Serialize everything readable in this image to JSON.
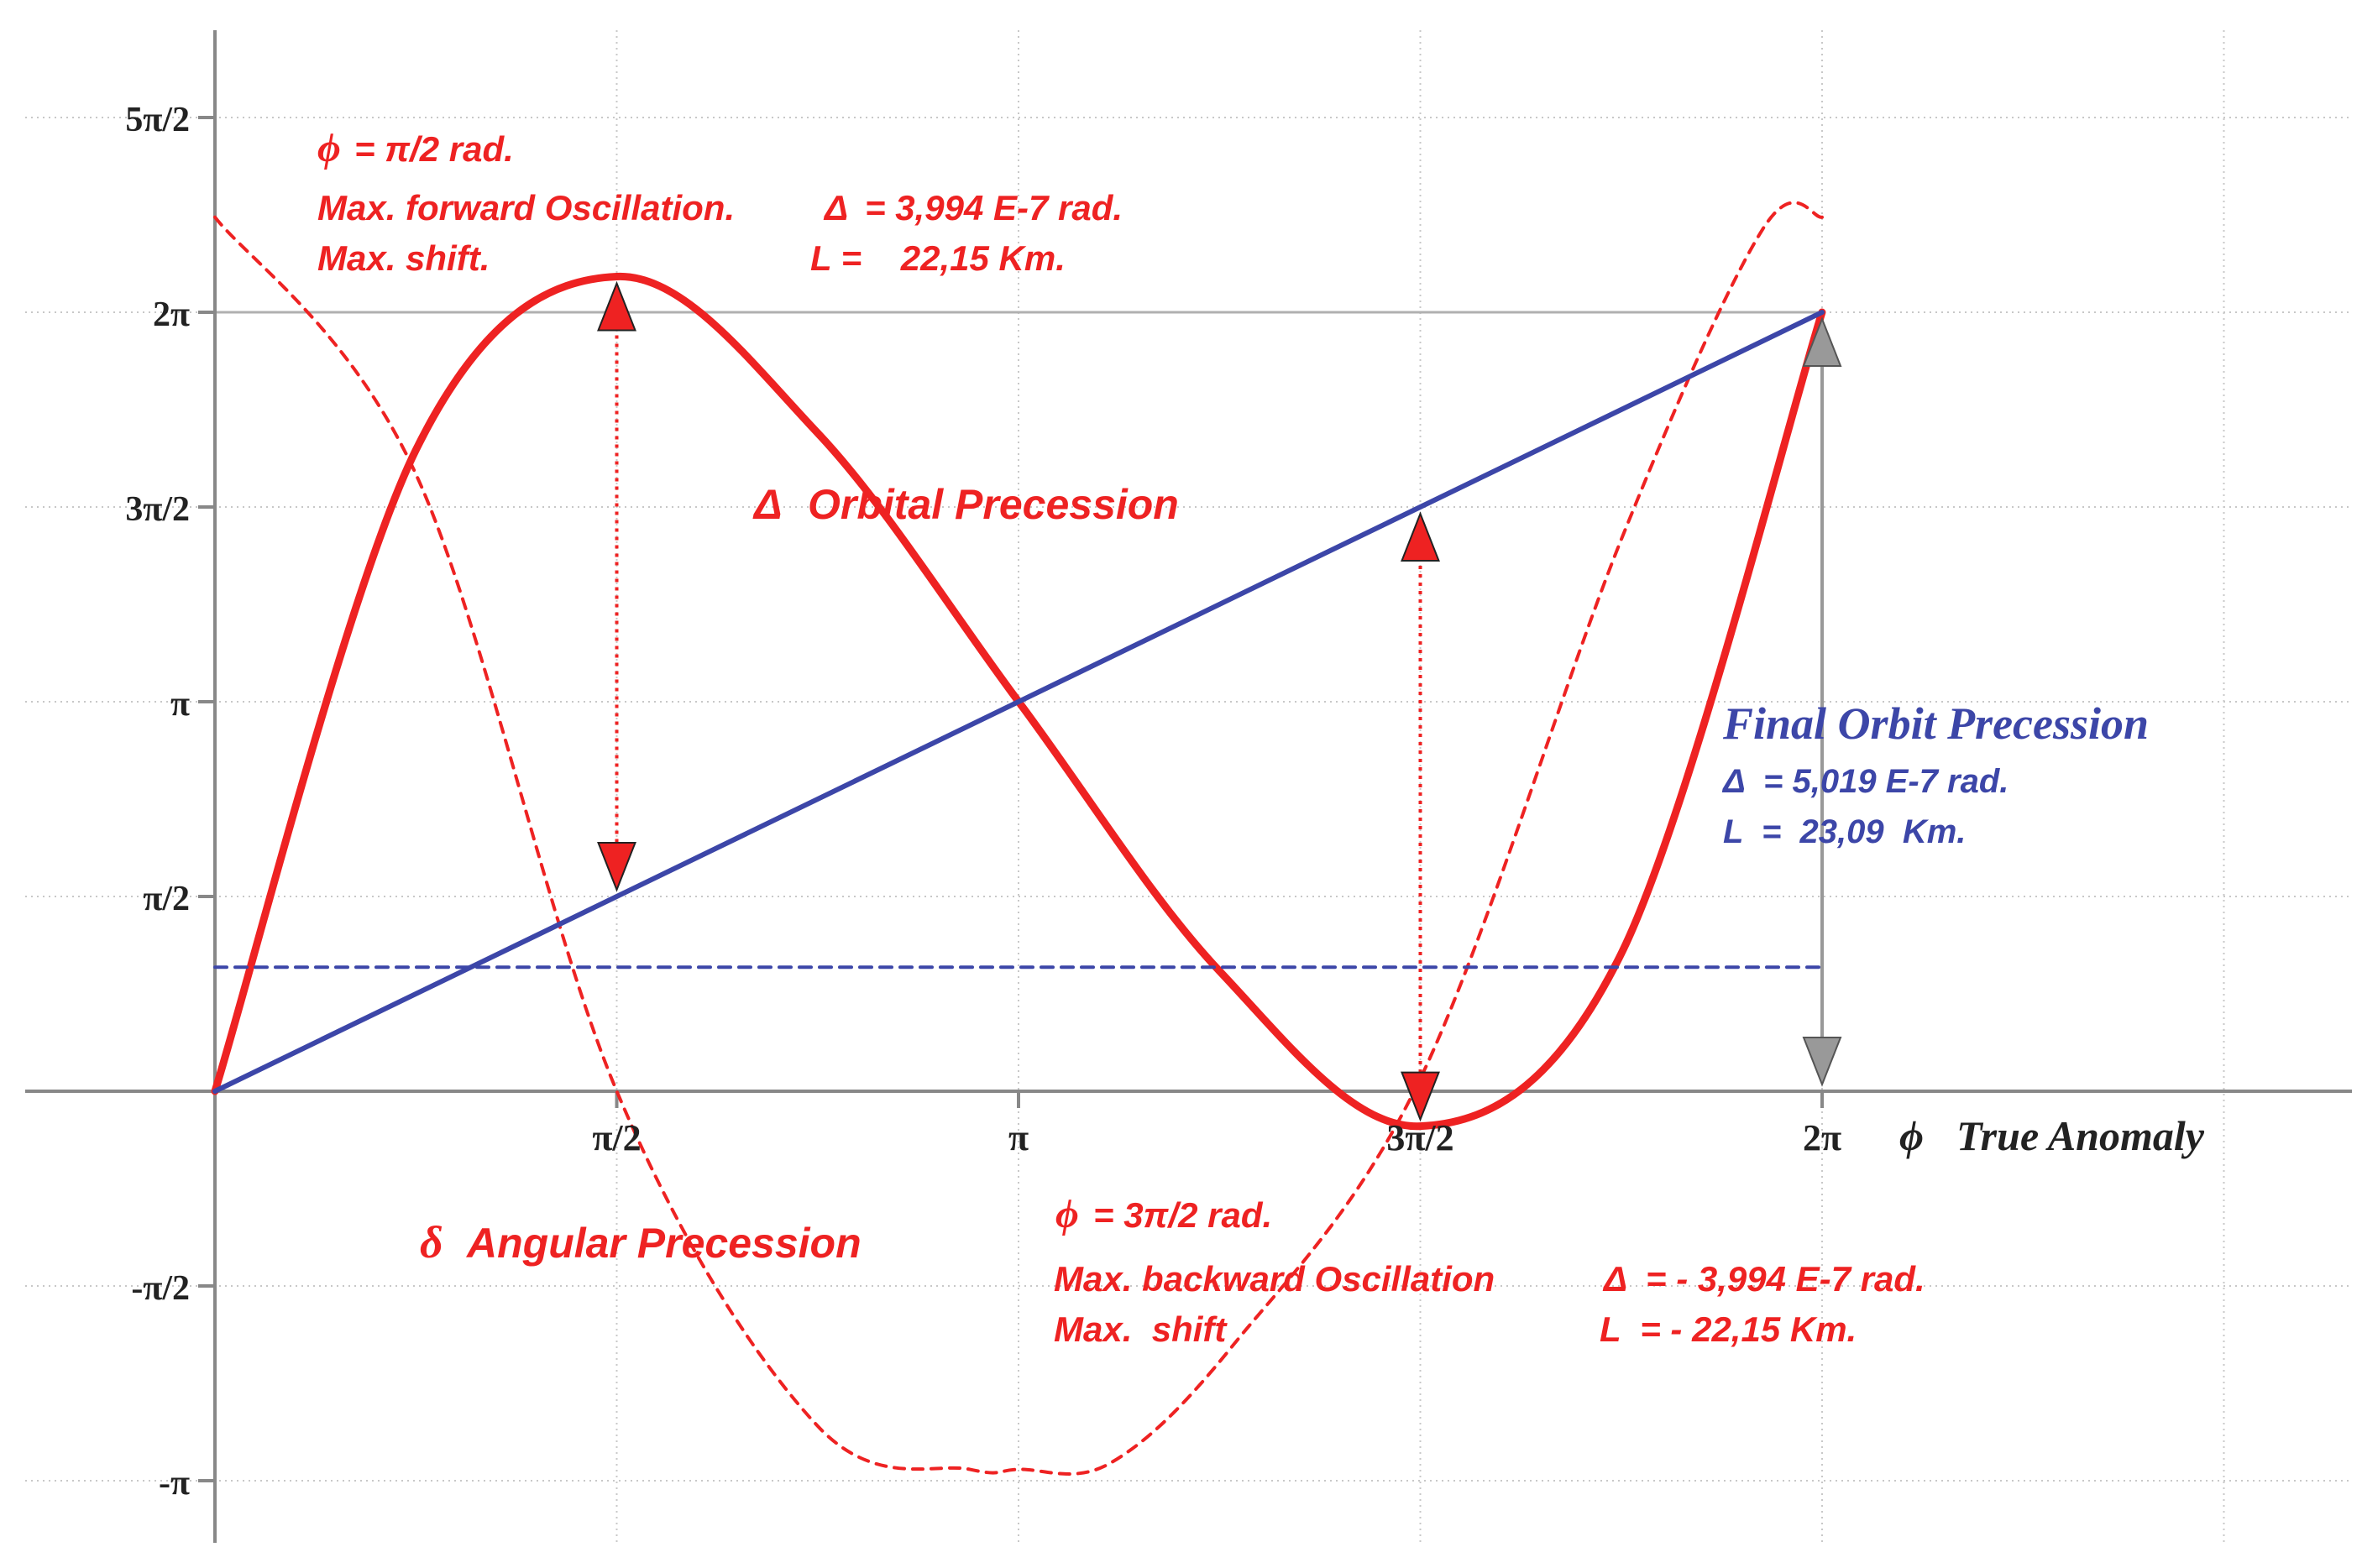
{
  "chart_data": {
    "type": "line",
    "x_ticks": [
      {
        "value": 1.5707963,
        "label": "π/2"
      },
      {
        "value": 3.1415927,
        "label": "π"
      },
      {
        "value": 4.712389,
        "label": "3π/2"
      },
      {
        "value": 6.2831853,
        "label": "2π"
      }
    ],
    "y_ticks": [
      {
        "value": 7.853982,
        "label": "5π/2"
      },
      {
        "value": 6.2831853,
        "label": "2π"
      },
      {
        "value": 4.712389,
        "label": "3π/2"
      },
      {
        "value": 3.1415927,
        "label": "π"
      },
      {
        "value": 1.5707963,
        "label": "π/2"
      },
      {
        "value": -1.5707963,
        "label": "-π/2"
      },
      {
        "value": -3.1415927,
        "label": "-π"
      }
    ],
    "x_axis_label": "True Anomaly",
    "x_axis_symbol": "ϕ",
    "xlim": [
      -0.75,
      8.4
    ],
    "ylim": [
      -3.6,
      8.75
    ],
    "series": [
      {
        "name": "Δ Orbital Precession",
        "style": "solid",
        "color": "#ee2222",
        "points": [
          [
            0,
            0
          ],
          [
            0.785,
            5.17
          ],
          [
            1.571,
            6.571
          ],
          [
            2.356,
            5.31
          ],
          [
            3.142,
            3.142
          ],
          [
            3.927,
            0.97
          ],
          [
            4.712,
            -0.282
          ],
          [
            5.498,
            1.11
          ],
          [
            6.283,
            6.283
          ]
        ]
      },
      {
        "name": "δ Angular Precession",
        "style": "dashed",
        "color": "#ee2222",
        "points": [
          [
            0,
            7.05
          ],
          [
            0.785,
            4.98
          ],
          [
            1.571,
            0
          ],
          [
            2.356,
            -2.7
          ],
          [
            2.95,
            -3.05
          ],
          [
            3.142,
            -3.05
          ],
          [
            3.5,
            -3.0
          ],
          [
            3.98,
            -2.05
          ],
          [
            4.712,
            0.1
          ],
          [
            5.498,
            4.45
          ],
          [
            6.05,
            6.95
          ],
          [
            6.283,
            7.05
          ]
        ]
      },
      {
        "name": "Final Orbit Precession",
        "style": "solid",
        "color": "#3c46a8",
        "points": [
          [
            0,
            0
          ],
          [
            6.283,
            6.283
          ]
        ]
      },
      {
        "name": "",
        "style": "dashed",
        "color": "#3c46a8",
        "points": [
          [
            0,
            1.0
          ],
          [
            6.283,
            1.0
          ]
        ]
      }
    ],
    "series_labels": {
      "orbital_delta": "Δ",
      "orbital": "Orbital Precession",
      "angular_delta": "δ",
      "angular": "Angular Precession",
      "final": "Final Orbit Precession"
    },
    "annotations": {
      "forward": {
        "phi_symbol": "ϕ",
        "phi_text": "= π/2 rad.",
        "line1": "Max. forward Oscillation.",
        "delta_symbol": "Δ",
        "delta_text": "= 3,994 E-7 rad.",
        "line2": "Max.  shift.",
        "l_text": "L =    22,15 Km."
      },
      "backward": {
        "phi_symbol": "ϕ",
        "phi_text": "= 3π/2 rad.",
        "line1": "Max. backward Oscillation",
        "delta_symbol": "Δ",
        "delta_text": "= - 3,994 E-7 rad.",
        "line2": "Max.  shift",
        "l_text": "L  = - 22,15 Km."
      },
      "final": {
        "delta_symbol": "Δ",
        "delta_text": "= 5,019 E-7 rad.",
        "l_text": "L  =  23,09  Km."
      }
    },
    "markers": [
      {
        "x": 1.5707963,
        "from_y": 6.571,
        "to_y": 1.5707963,
        "color": "#ee2222",
        "style": "dotted"
      },
      {
        "x": 4.712389,
        "from_y": 4.712389,
        "to_y": -0.282,
        "color": "#ee2222",
        "style": "dotted"
      },
      {
        "x": 6.2831853,
        "from_y": 6.2831853,
        "to_y": 0,
        "color": "#999999",
        "style": "solid"
      }
    ],
    "grid": true,
    "colors": {
      "red": "#ee2222",
      "blue": "#3c46a8",
      "axis": "#888888",
      "grid": "#c8c8c8",
      "marker_gray": "#999999"
    }
  }
}
